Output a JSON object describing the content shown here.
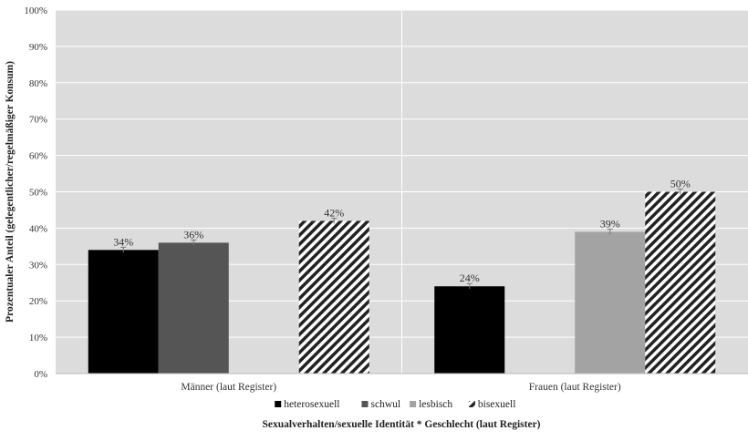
{
  "chart_data": {
    "type": "bar",
    "title": "",
    "xlabel": "Sexualverhalten/sexuelle Identität * Geschlecht (laut Register)",
    "ylabel": "Prozentualer Anteil (gelegentlicher/regelmäßiger Konsum)",
    "categories": [
      "Männer (laut Register)",
      "Frauen (laut Register)"
    ],
    "series": [
      {
        "name": "heterosexuell",
        "values": [
          34,
          24
        ],
        "labels": [
          "34%",
          "24%"
        ],
        "color": "#000000",
        "pattern": "solid"
      },
      {
        "name": "schwul",
        "values": [
          36,
          null
        ],
        "labels": [
          "36%",
          ""
        ],
        "color": "#555555",
        "pattern": "solid"
      },
      {
        "name": "lesbisch",
        "values": [
          null,
          39
        ],
        "labels": [
          "",
          "39%"
        ],
        "color": "#a3a3a3",
        "pattern": "solid"
      },
      {
        "name": "bisexuell",
        "values": [
          42,
          50
        ],
        "labels": [
          "42%",
          "50%"
        ],
        "color": "#222222",
        "pattern": "diagonal-hatch"
      }
    ],
    "ylim": [
      0,
      100
    ],
    "yticks": [
      "0%",
      "10%",
      "20%",
      "30%",
      "40%",
      "50%",
      "60%",
      "70%",
      "80%",
      "90%",
      "100%"
    ],
    "grid": true,
    "legend_position": "bottom",
    "plot_background": "#dcdcdc"
  }
}
